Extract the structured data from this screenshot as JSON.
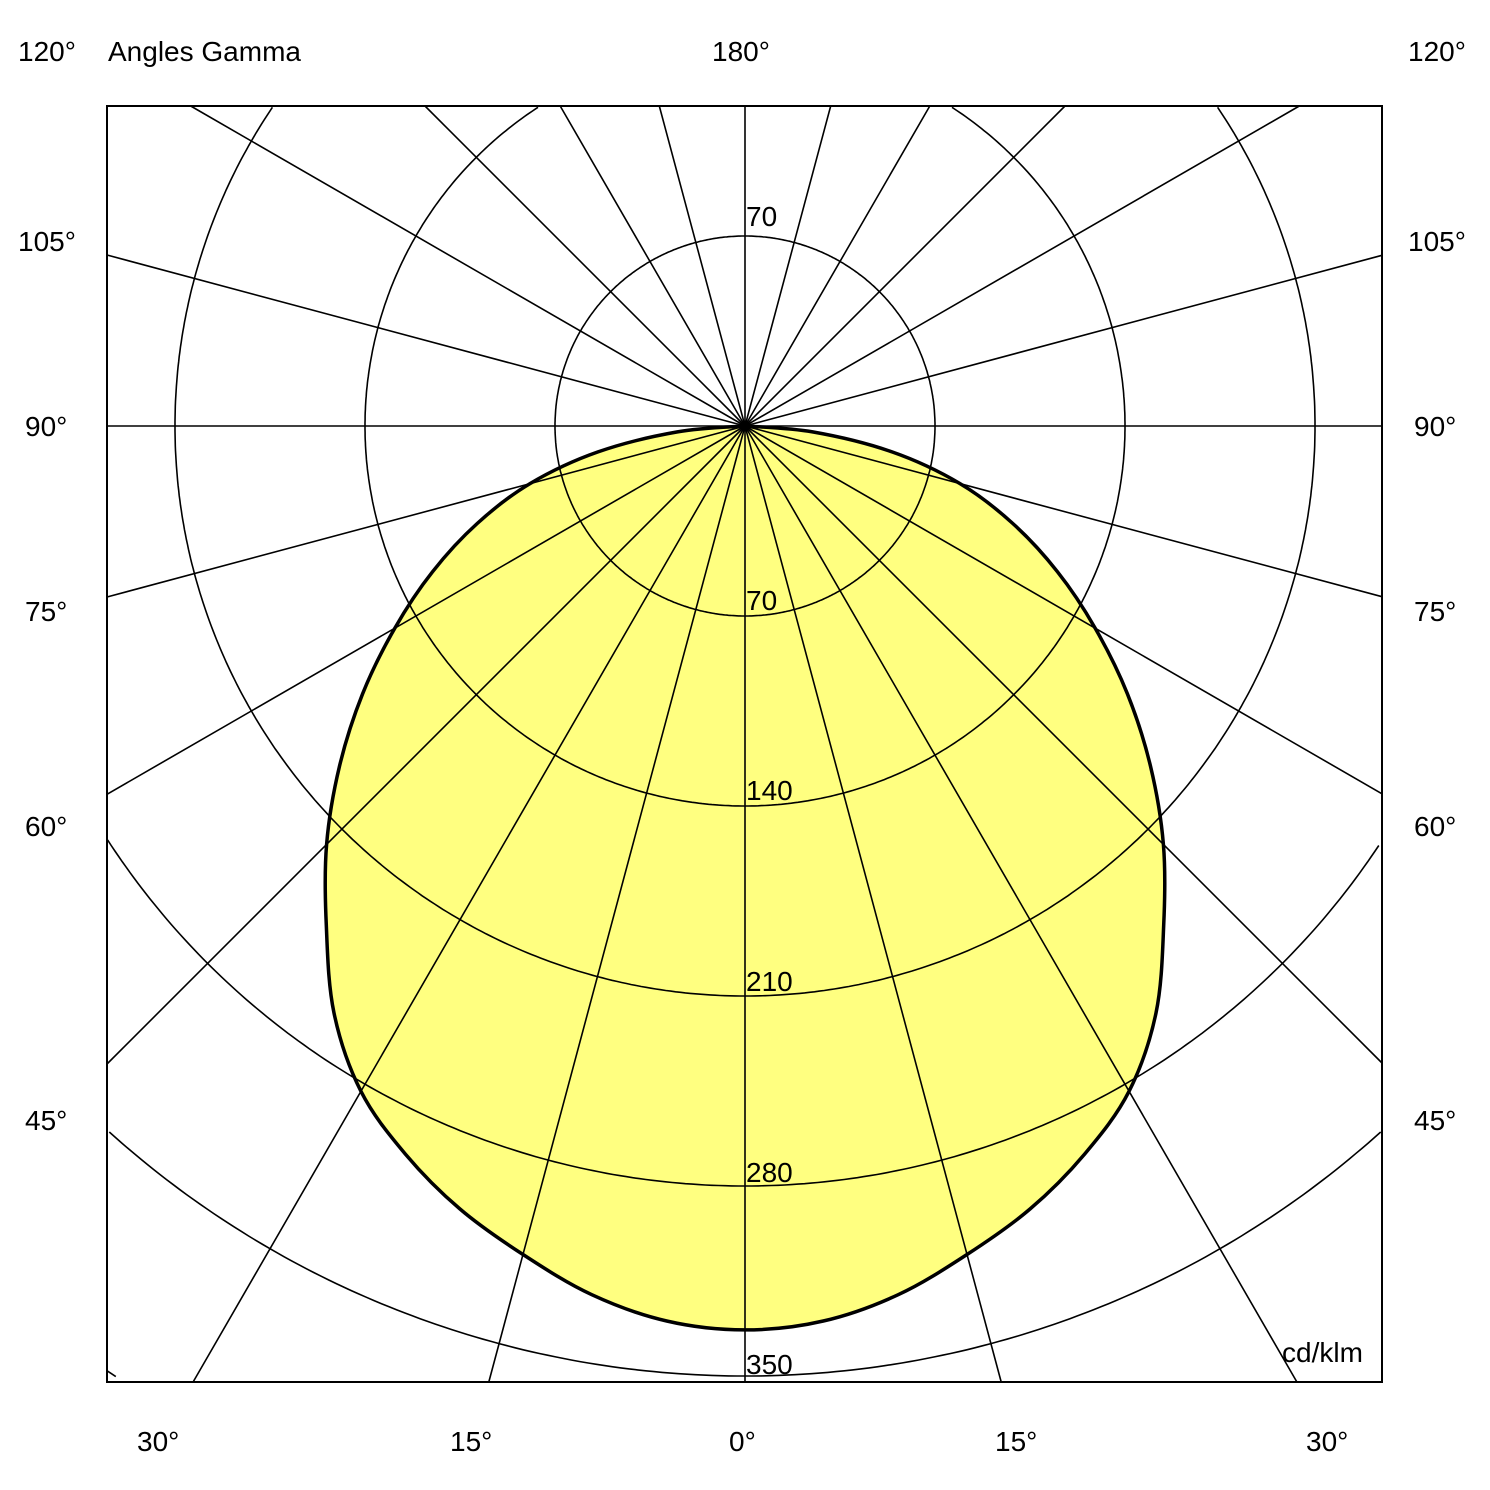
{
  "chart_data": {
    "type": "polar",
    "title": "Angles Gamma",
    "unit_label": "cd/klm",
    "angle_labels": {
      "top_left": "120°",
      "top_center": "180°",
      "top_right": "120°",
      "left": [
        "105°",
        "90°",
        "75°",
        "60°",
        "45°"
      ],
      "right": [
        "105°",
        "90°",
        "75°",
        "60°",
        "45°"
      ],
      "bottom": [
        "30°",
        "15°",
        "0°",
        "15°",
        "30°"
      ]
    },
    "radial_tick_labels": {
      "upper": [
        "70"
      ],
      "lower": [
        "70",
        "140",
        "210",
        "280",
        "350"
      ]
    },
    "rings": [
      70,
      140,
      210,
      280,
      350,
      420
    ],
    "radial_line_step_deg": 15,
    "fill_color": "#ffff80",
    "curve_color": "#000000",
    "series": [
      {
        "gamma": [
          0,
          5,
          10,
          15,
          20,
          25,
          30,
          35,
          40,
          45,
          50,
          55,
          60,
          65,
          70,
          75,
          80,
          85,
          90
        ],
        "intensity": [
          333,
          331,
          325,
          316,
          307,
          296,
          283,
          264,
          240,
          218,
          195,
          172,
          149,
          127,
          105,
          82,
          55,
          25,
          0
        ]
      }
    ]
  }
}
